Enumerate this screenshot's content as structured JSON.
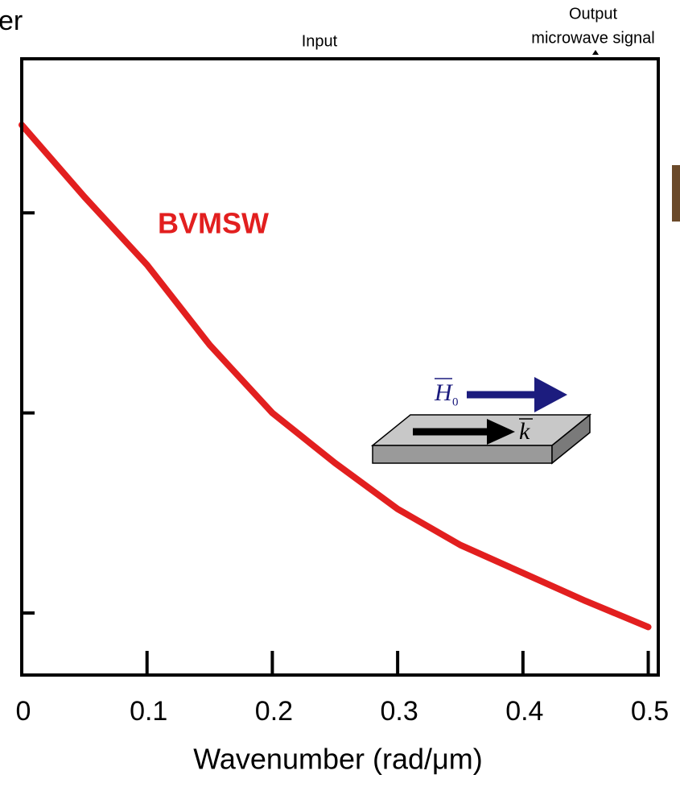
{
  "chart_data": {
    "type": "line",
    "corner_text": "er",
    "top_labels": [
      "Input",
      "Output",
      "microwave signal"
    ],
    "annotation": "BVMSW",
    "inset_labels": [
      "H",
      "0",
      "k"
    ],
    "x_label": "Wavenumber (rad/μm)",
    "x": [
      0,
      0.05,
      0.1,
      0.15,
      0.2,
      0.25,
      0.3,
      0.35,
      0.4,
      0.45,
      0.5
    ],
    "series": [
      {
        "color": "#e21f1f",
        "values": [
          3.44,
          3.08,
          2.74,
          2.34,
          2.0,
          1.75,
          1.52,
          1.34,
          1.2,
          1.06,
          0.93
        ]
      }
    ],
    "xlim": [
      0,
      0.508
    ],
    "xticks": [
      0,
      0.1,
      0.2,
      0.3,
      0.4,
      0.5
    ],
    "ylim": [
      0.69,
      3.77
    ],
    "yticks": [
      1,
      2,
      3
    ],
    "ytick_labels": false
  }
}
